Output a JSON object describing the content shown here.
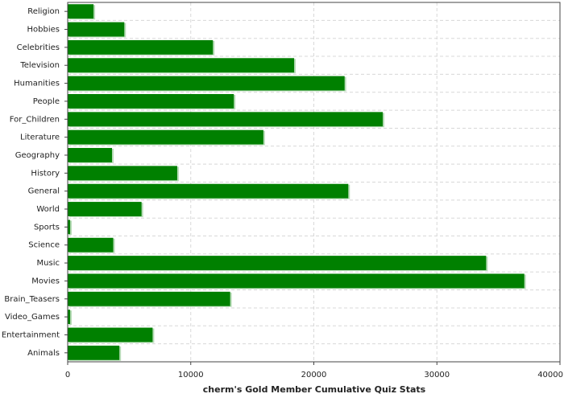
{
  "chart_data": {
    "type": "barh",
    "xlabel": "cherm's Gold Member Cumulative Quiz Stats",
    "categories": [
      "Religion",
      "Hobbies",
      "Celebrities",
      "Television",
      "Humanities",
      "People",
      "For_Children",
      "Literature",
      "Geography",
      "History",
      "General",
      "World",
      "Sports",
      "Science",
      "Music",
      "Movies",
      "Brain_Teasers",
      "Video_Games",
      "Entertainment",
      "Animals"
    ],
    "values": [
      2100,
      4600,
      11800,
      18400,
      22500,
      13500,
      25600,
      15900,
      3600,
      8900,
      22800,
      6000,
      200,
      3700,
      34000,
      37100,
      13200,
      200,
      6900,
      4200
    ],
    "color": "#008000",
    "xlim": [
      0,
      40000
    ],
    "xticks": [
      0,
      10000,
      20000,
      30000,
      40000
    ],
    "grid": true
  }
}
